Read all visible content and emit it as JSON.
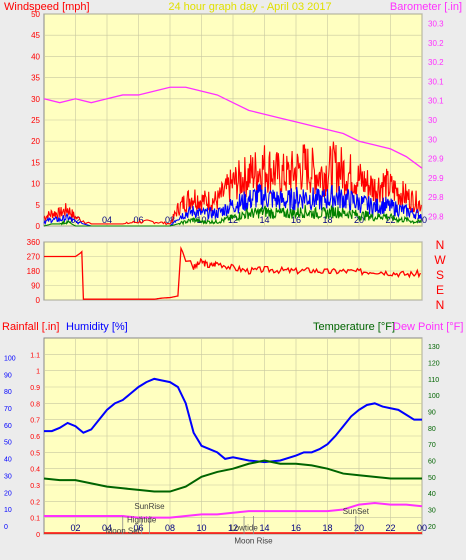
{
  "header": {
    "left_label": "Windspeed [mph]",
    "title": "24 hour graph day - April 03 2017",
    "right_label": "Barometer [.in]"
  },
  "panel3_header": {
    "rain_label": "Rainfall [.in]",
    "humidity_label": "Humidity [%]",
    "temp_label": "Temperature [°F]",
    "dew_label": "Dew Point [°F]"
  },
  "compass": [
    "N",
    "W",
    "S",
    "E",
    "N"
  ],
  "tide_events": [
    {
      "label": "Moon Set",
      "time": 5.0,
      "y": 0.02
    },
    {
      "label": "SunRise",
      "time": 6.7,
      "y": 0.17
    },
    {
      "label": "Hightide",
      "time": 6.2,
      "y": 0.09
    },
    {
      "label": "Lowtide",
      "time": 12.7,
      "y": 0.04
    },
    {
      "label": "Moon Rise",
      "time": 13.3,
      "y": -0.04
    },
    {
      "label": "SunSet",
      "time": 19.8,
      "y": 0.14
    }
  ],
  "colors": {
    "plot_bg": "#ffffc0",
    "page_bg": "#ececec",
    "gridline": "#c8c8a0",
    "wind_hi": "#ff0000",
    "wind_avg": "#0000ff",
    "wind_lo": "#008000",
    "barometer": "#ff30ff",
    "direction": "#ff0000",
    "humidity": "#0000ff",
    "temperature": "#006400",
    "dewpoint": "#ff30ff",
    "rain": "#ff0000",
    "title": "#e0e000"
  },
  "chart_data": [
    {
      "type": "line",
      "title": "24 hour graph day - April 03 2017",
      "xlabel": "",
      "x_ticks": [
        "02",
        "04",
        "06",
        "08",
        "10",
        "12",
        "14",
        "16",
        "18",
        "20",
        "22",
        "00"
      ],
      "xlim": [
        0,
        24
      ],
      "ylabel": "Windspeed [mph]",
      "ylim": [
        0,
        50
      ],
      "y_ticks": [
        "0",
        "5",
        "10",
        "15",
        "20",
        "25",
        "30",
        "35",
        "40",
        "45",
        "50"
      ],
      "y2label": "Barometer [.in]",
      "y2lim": [
        29.75,
        30.3
      ],
      "y2_ticks": [
        "29.8",
        "29.8",
        "29.9",
        "29.9",
        "30",
        "30",
        "30.1",
        "30.1",
        "30.2",
        "30.2",
        "30.3"
      ],
      "series": [
        {
          "name": "Windspeed gust",
          "axis": "left",
          "x": [
            0,
            0.5,
            1,
            1.5,
            2,
            3,
            4,
            5,
            6,
            7,
            8,
            8.5,
            9,
            9.5,
            10,
            10.5,
            11,
            11.5,
            12,
            12.5,
            13,
            13.5,
            14,
            14.5,
            15,
            15.5,
            16,
            16.5,
            17,
            17.5,
            18,
            18.5,
            19,
            19.5,
            20,
            20.5,
            21,
            21.5,
            22,
            22.5,
            23,
            23.5,
            24
          ],
          "y": [
            2,
            3,
            3,
            4,
            2,
            0.5,
            0.5,
            0.5,
            1,
            1,
            0.5,
            4,
            6,
            7,
            6,
            6,
            6,
            8,
            10,
            11,
            12,
            13,
            14,
            13,
            12,
            12,
            13,
            14,
            13,
            12,
            13,
            14,
            13,
            12,
            11,
            10,
            9,
            10,
            9,
            8,
            7,
            6,
            5
          ]
        },
        {
          "name": "Windspeed avg",
          "axis": "left",
          "x": [
            0,
            0.5,
            1,
            1.5,
            2,
            3,
            4,
            5,
            6,
            7,
            8,
            8.5,
            9,
            9.5,
            10,
            10.5,
            11,
            11.5,
            12,
            12.5,
            13,
            13.5,
            14,
            14.5,
            15,
            15.5,
            16,
            16.5,
            17,
            17.5,
            18,
            18.5,
            19,
            19.5,
            20,
            20.5,
            21,
            21.5,
            22,
            22.5,
            23,
            23.5,
            24
          ],
          "y": [
            1,
            1.5,
            1.5,
            2,
            1,
            0,
            0,
            0,
            0,
            0,
            0,
            2,
            3,
            3.5,
            3,
            3,
            3,
            4,
            5,
            5.5,
            6,
            7,
            7,
            6.5,
            6,
            6,
            6.5,
            7,
            6.5,
            6,
            6.5,
            7,
            6.5,
            6,
            5.5,
            5,
            4.5,
            5,
            4.5,
            4,
            3.5,
            3,
            2.5
          ]
        },
        {
          "name": "Windspeed low",
          "axis": "left",
          "x": [
            0,
            0.5,
            1,
            1.5,
            2,
            3,
            4,
            5,
            6,
            7,
            8,
            8.5,
            9,
            9.5,
            10,
            10.5,
            11,
            11.5,
            12,
            12.5,
            13,
            13.5,
            14,
            14.5,
            15,
            15.5,
            16,
            16.5,
            17,
            17.5,
            18,
            18.5,
            19,
            19.5,
            20,
            20.5,
            21,
            21.5,
            22,
            22.5,
            23,
            23.5,
            24
          ],
          "y": [
            0,
            0.5,
            0.5,
            1,
            0,
            0,
            0,
            0,
            0,
            0,
            0,
            0.5,
            1,
            1.5,
            1,
            1,
            1,
            1.5,
            2,
            2.5,
            3,
            3,
            3.5,
            3,
            3,
            3,
            3,
            3.5,
            3,
            3,
            3,
            3.5,
            3,
            3,
            2.5,
            2.5,
            2,
            2.5,
            2,
            1.5,
            1.5,
            1,
            1
          ]
        },
        {
          "name": "Barometer",
          "axis": "right",
          "x": [
            0,
            1,
            2,
            3,
            4,
            5,
            6,
            7,
            8,
            9,
            10,
            11,
            12,
            13,
            14,
            15,
            16,
            17,
            18,
            19,
            20,
            21,
            22,
            23,
            24
          ],
          "y": [
            30.08,
            30.07,
            30.08,
            30.07,
            30.08,
            30.09,
            30.09,
            30.1,
            30.11,
            30.11,
            30.1,
            30.09,
            30.07,
            30.05,
            30.04,
            30.03,
            30.02,
            30.01,
            30.0,
            29.99,
            29.97,
            29.96,
            29.95,
            29.93,
            29.9
          ]
        }
      ]
    },
    {
      "type": "line",
      "title": "",
      "ylabel": "",
      "ylim": [
        0,
        360
      ],
      "y_ticks": [
        "0",
        "90",
        "180",
        "270",
        "360"
      ],
      "xlim": [
        0,
        24
      ],
      "series": [
        {
          "name": "",
          "x": [
            0,
            0.5,
            1,
            1.5,
            2,
            2.3,
            2.4,
            2.5,
            3,
            4,
            5,
            6,
            7,
            7.5,
            8,
            8.5,
            8.7,
            8.8,
            9,
            9.3,
            9.5,
            10,
            10.5,
            11,
            12,
            13,
            14,
            15,
            16,
            17,
            18,
            19,
            20,
            21,
            22,
            23,
            24
          ],
          "y": [
            270,
            270,
            270,
            270,
            270,
            290,
            300,
            5,
            5,
            5,
            5,
            5,
            5,
            12,
            15,
            25,
            320,
            300,
            240,
            250,
            200,
            240,
            210,
            230,
            200,
            180,
            190,
            185,
            180,
            185,
            175,
            180,
            175,
            180,
            170,
            160,
            165
          ]
        }
      ]
    },
    {
      "type": "line",
      "title": "",
      "xlim": [
        0,
        24
      ],
      "x_ticks": [
        "02",
        "04",
        "06",
        "08",
        "10",
        "12",
        "14",
        "16",
        "18",
        "20",
        "22",
        "00"
      ],
      "ylabel": "Rainfall [.in]",
      "ylim": [
        0,
        1.2
      ],
      "y_ticks": [
        "0",
        "0.1",
        "0.2",
        "0.3",
        "0.4",
        "0.5",
        "0.6",
        "0.7",
        "0.8",
        "0.9",
        "1",
        "1.1"
      ],
      "y_left_ticks": [
        "0",
        "10",
        "20",
        "30",
        "40",
        "50",
        "60",
        "70",
        "80",
        "90",
        "100"
      ],
      "y2label": "Temperature [°F]",
      "y2lim": [
        15,
        135
      ],
      "y2_ticks": [
        "20",
        "30",
        "40",
        "50",
        "60",
        "70",
        "80",
        "90",
        "100",
        "110",
        "120",
        "130"
      ],
      "series": [
        {
          "name": "Humidity",
          "axis": "left",
          "x": [
            0,
            0.5,
            1,
            1.5,
            2,
            2.5,
            3,
            3.5,
            4,
            4.5,
            5,
            5.5,
            6,
            6.5,
            7,
            7.5,
            8,
            8.5,
            9,
            9.5,
            10,
            10.5,
            11,
            11.5,
            12,
            13,
            14,
            15,
            16,
            16.5,
            17,
            17.5,
            18,
            18.5,
            19,
            19.5,
            20,
            20.5,
            21,
            21.5,
            22,
            22.5,
            23,
            23.5,
            24
          ],
          "y": [
            0.63,
            0.63,
            0.65,
            0.68,
            0.66,
            0.62,
            0.64,
            0.7,
            0.76,
            0.8,
            0.82,
            0.86,
            0.9,
            0.93,
            0.95,
            0.94,
            0.93,
            0.9,
            0.8,
            0.62,
            0.54,
            0.52,
            0.5,
            0.46,
            0.47,
            0.45,
            0.44,
            0.45,
            0.48,
            0.5,
            0.5,
            0.52,
            0.55,
            0.6,
            0.66,
            0.72,
            0.76,
            0.79,
            0.8,
            0.78,
            0.77,
            0.76,
            0.73,
            0.7,
            0.7
          ]
        },
        {
          "name": "Temperature",
          "axis": "right",
          "x": [
            0,
            1,
            2,
            3,
            4,
            5,
            6,
            7,
            8,
            9,
            10,
            11,
            12,
            13,
            14,
            15,
            16,
            17,
            18,
            19,
            20,
            21,
            22,
            23,
            24
          ],
          "y": [
            49,
            48,
            48,
            46,
            44,
            43,
            42,
            41,
            41,
            44,
            50,
            53,
            55,
            58,
            60,
            58,
            58,
            57,
            55,
            52,
            51,
            50,
            49,
            49,
            49
          ]
        },
        {
          "name": "Dew Point",
          "axis": "right",
          "x": [
            0,
            1,
            2,
            3,
            4,
            5,
            6,
            7,
            8,
            9,
            10,
            11,
            12,
            13,
            14,
            15,
            16,
            17,
            18,
            19,
            20,
            21,
            22,
            23,
            24
          ],
          "y": [
            26,
            26,
            26,
            26,
            26,
            26,
            25,
            25,
            25,
            26,
            27,
            27,
            28,
            29,
            29,
            29,
            29,
            29,
            29,
            30,
            33,
            34,
            33,
            33,
            32
          ]
        },
        {
          "name": "Rainfall",
          "axis": "left",
          "x": [
            0,
            24
          ],
          "y": [
            0,
            0
          ]
        }
      ]
    }
  ]
}
